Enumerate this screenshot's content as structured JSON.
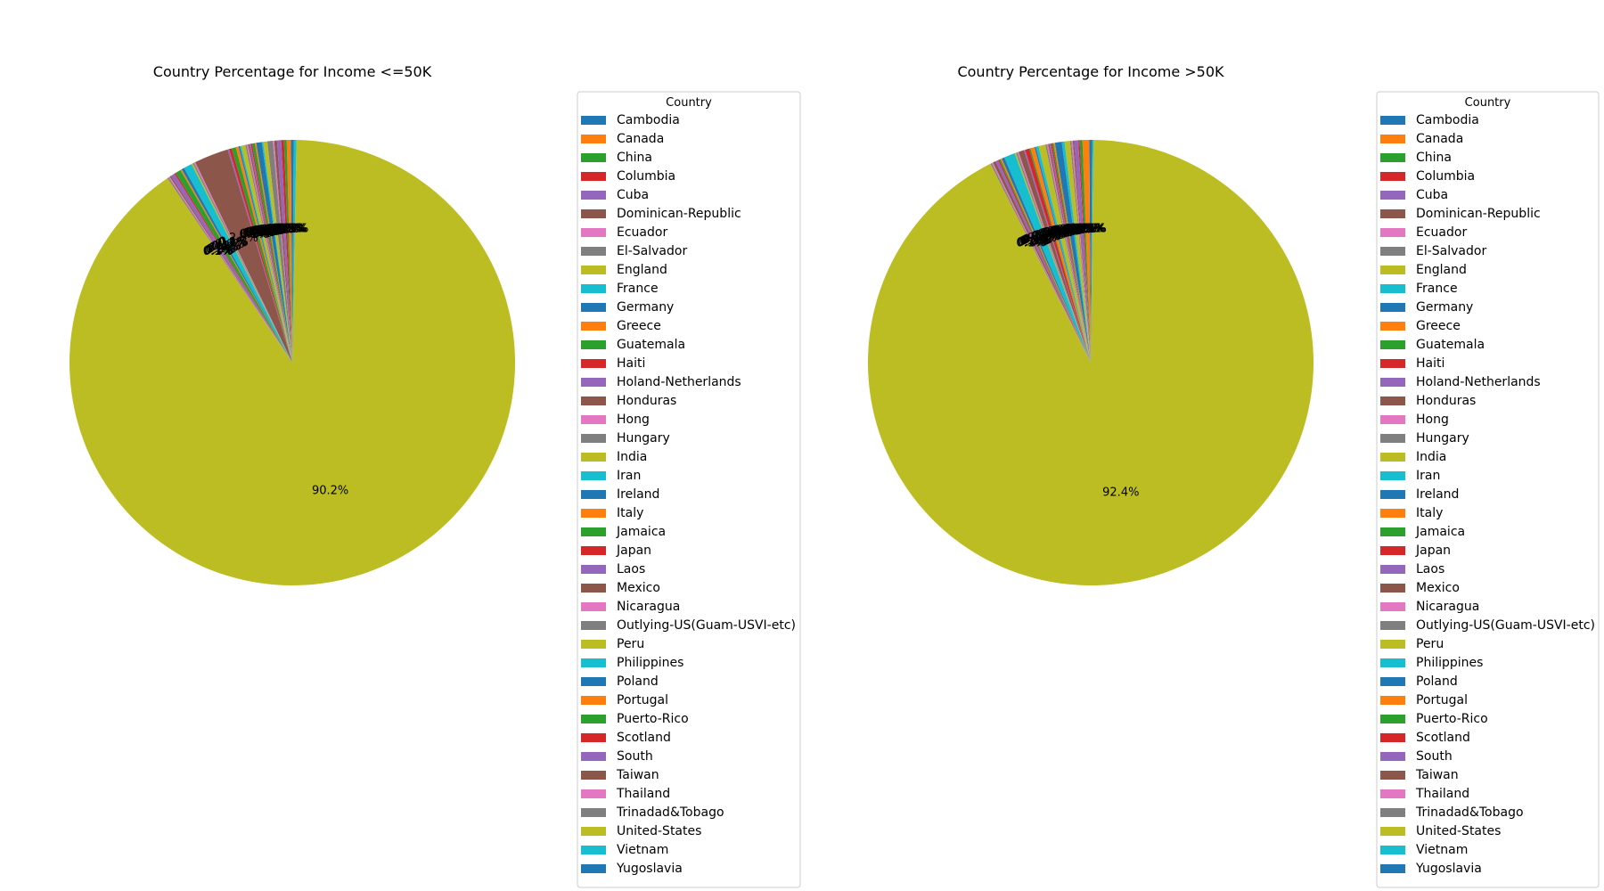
{
  "chart_data": [
    {
      "type": "pie",
      "title": "Country Percentage for Income <=50K",
      "legend_title": "Country",
      "legend_position": "right",
      "start_angle": 90,
      "counterclockwise": true,
      "autopct_format": "%.1f%%",
      "categories": [
        "Cambodia",
        "Canada",
        "China",
        "Columbia",
        "Cuba",
        "Dominican-Republic",
        "Ecuador",
        "El-Salvador",
        "England",
        "France",
        "Germany",
        "Greece",
        "Guatemala",
        "Haiti",
        "Holand-Netherlands",
        "Honduras",
        "Hong",
        "Hungary",
        "India",
        "Iran",
        "Ireland",
        "Italy",
        "Jamaica",
        "Japan",
        "Laos",
        "Mexico",
        "Nicaragua",
        "Outlying-US(Guam-USVI-etc)",
        "Peru",
        "Philippines",
        "Poland",
        "Portugal",
        "Puerto-Rico",
        "Scotland",
        "South",
        "Taiwan",
        "Thailand",
        "Trinadad&Tobago",
        "United-States",
        "Vietnam",
        "Yugoslavia"
      ],
      "values": [
        0.1,
        0.3,
        0.2,
        0.2,
        0.3,
        0.2,
        0.1,
        0.4,
        0.3,
        0.1,
        0.4,
        0.1,
        0.2,
        0.1,
        0.1,
        0.1,
        0.1,
        0.1,
        0.3,
        0.1,
        0.1,
        0.2,
        0.3,
        0.2,
        0.1,
        2.5,
        0.1,
        0.1,
        0.1,
        0.6,
        0.2,
        0.1,
        0.4,
        0.1,
        0.3,
        0.1,
        0.1,
        0.1,
        90.5,
        0.2,
        0.1
      ],
      "colors": [
        "#1f77b4",
        "#ff7f0e",
        "#2ca02c",
        "#d62728",
        "#9467bd",
        "#8c564b",
        "#e377c2",
        "#7f7f7f",
        "#bcbd22",
        "#17becf"
      ]
    },
    {
      "type": "pie",
      "title": "Country Percentage for Income >50K",
      "legend_title": "Country",
      "legend_position": "right",
      "start_angle": 90,
      "counterclockwise": true,
      "autopct_format": "%.1f%%",
      "categories": [
        "Cambodia",
        "Canada",
        "China",
        "Columbia",
        "Cuba",
        "Dominican-Republic",
        "Ecuador",
        "El-Salvador",
        "England",
        "France",
        "Germany",
        "Greece",
        "Guatemala",
        "Haiti",
        "Holand-Netherlands",
        "Honduras",
        "Hong",
        "Hungary",
        "India",
        "Iran",
        "Ireland",
        "Italy",
        "Jamaica",
        "Japan",
        "Laos",
        "Mexico",
        "Nicaragua",
        "Outlying-US(Guam-USVI-etc)",
        "Peru",
        "Philippines",
        "Poland",
        "Portugal",
        "Puerto-Rico",
        "Scotland",
        "South",
        "Taiwan",
        "Thailand",
        "Trinadad&Tobago",
        "United-States",
        "Vietnam",
        "Yugoslavia"
      ],
      "values": [
        0.1,
        0.5,
        0.2,
        0.1,
        0.3,
        0.1,
        0.1,
        0.1,
        0.4,
        0.2,
        0.5,
        0.1,
        0.1,
        0.1,
        0.1,
        0.1,
        0.1,
        0.1,
        0.5,
        0.2,
        0.1,
        0.3,
        0.1,
        0.3,
        0.1,
        0.4,
        0.1,
        0.1,
        0.1,
        0.8,
        0.2,
        0.1,
        0.1,
        0.1,
        0.2,
        0.2,
        0.1,
        0.1,
        93.2,
        0.1,
        0.1
      ],
      "colors": [
        "#1f77b4",
        "#ff7f0e",
        "#2ca02c",
        "#d62728",
        "#9467bd",
        "#8c564b",
        "#e377c2",
        "#7f7f7f",
        "#bcbd22",
        "#17becf"
      ]
    }
  ]
}
